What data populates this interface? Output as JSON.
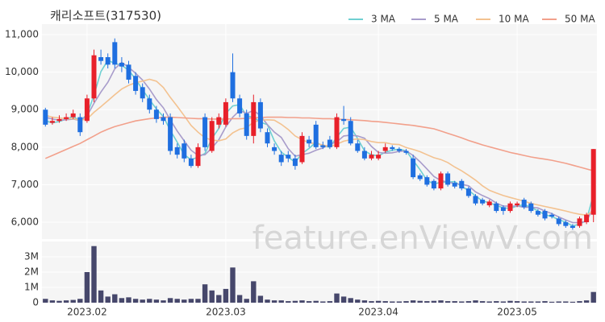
{
  "chart_data": {
    "type": "candlestick",
    "title": "캐리소프트(317530)",
    "watermark": "feature.enViewV.com",
    "grid": true,
    "up_color": "#e8202a",
    "down_color": "#1f6fe0",
    "categories": [
      null,
      null,
      null,
      null,
      null,
      null,
      "2023.02",
      null,
      null,
      null,
      null,
      null,
      null,
      null,
      null,
      null,
      null,
      null,
      null,
      null,
      null,
      null,
      null,
      null,
      null,
      null,
      "2023.03",
      null,
      null,
      null,
      null,
      null,
      null,
      null,
      null,
      null,
      null,
      null,
      null,
      null,
      null,
      null,
      null,
      null,
      null,
      null,
      null,
      null,
      "2023.04",
      null,
      null,
      null,
      null,
      null,
      null,
      null,
      null,
      null,
      null,
      null,
      null,
      null,
      null,
      null,
      null,
      null,
      null,
      null,
      "2023.05",
      null,
      null,
      null,
      null,
      null,
      null,
      null,
      null,
      null,
      null,
      null
    ],
    "open": [
      9000,
      8650,
      8700,
      8750,
      8800,
      8800,
      8700,
      9300,
      10400,
      10400,
      10800,
      10250,
      10200,
      9900,
      9600,
      9300,
      9000,
      8800,
      8800,
      8000,
      8100,
      7700,
      7500,
      8800,
      7900,
      8600,
      8600,
      10000,
      9300,
      8900,
      8300,
      9200,
      8400,
      8000,
      7800,
      7800,
      7700,
      7600,
      8200,
      8600,
      8050,
      8200,
      8000,
      8750,
      8700,
      8100,
      7900,
      7700,
      7700,
      7900,
      8000,
      7950,
      7900,
      7700,
      7250,
      7200,
      7100,
      6900,
      7300,
      7050,
      7100,
      6900,
      6700,
      6600,
      6450,
      6500,
      6400,
      6300,
      6450,
      6600,
      6500,
      6300,
      6300,
      6200,
      6100,
      6000,
      5900,
      5900,
      6000,
      6200
    ],
    "high": [
      9050,
      8800,
      8850,
      8900,
      9000,
      8900,
      9400,
      10600,
      10600,
      10500,
      10900,
      10400,
      10300,
      10000,
      9700,
      9400,
      9100,
      8900,
      8900,
      8100,
      8200,
      7800,
      8100,
      8900,
      8800,
      8900,
      9300,
      10500,
      9400,
      9000,
      9400,
      9300,
      8500,
      8100,
      7900,
      7900,
      7800,
      8400,
      8300,
      8700,
      8150,
      8300,
      8900,
      9100,
      8800,
      8200,
      8000,
      7900,
      7900,
      8100,
      8050,
      8000,
      7950,
      7800,
      7300,
      7250,
      7150,
      7350,
      7350,
      7100,
      7150,
      6950,
      6750,
      6650,
      6600,
      6550,
      6450,
      6550,
      6550,
      6650,
      6550,
      6350,
      6350,
      6250,
      6150,
      6050,
      5950,
      6150,
      6250,
      7950
    ],
    "low": [
      8550,
      8600,
      8650,
      8700,
      8750,
      8300,
      8650,
      9200,
      10200,
      10100,
      10100,
      10000,
      9700,
      9400,
      9200,
      8900,
      8650,
      8600,
      7800,
      7700,
      7600,
      7450,
      7450,
      7900,
      7850,
      8500,
      8550,
      9200,
      8800,
      8200,
      8100,
      8400,
      8000,
      7800,
      7500,
      7600,
      7400,
      7550,
      8000,
      7950,
      7950,
      7950,
      7950,
      8600,
      8050,
      7850,
      7650,
      7650,
      7650,
      7850,
      7900,
      7850,
      7800,
      7150,
      7100,
      6950,
      6850,
      6850,
      6950,
      6900,
      6850,
      6650,
      6450,
      6450,
      6400,
      6250,
      6200,
      6250,
      6400,
      6350,
      6250,
      6150,
      6050,
      6100,
      5900,
      5850,
      5800,
      5850,
      5950,
      6000
    ],
    "close": [
      8600,
      8700,
      8750,
      8800,
      8900,
      8400,
      9300,
      10450,
      10300,
      10200,
      10200,
      10150,
      9800,
      9500,
      9300,
      9000,
      8750,
      8700,
      7900,
      7800,
      7700,
      7500,
      8000,
      8000,
      8700,
      8800,
      9200,
      9300,
      8900,
      8300,
      9200,
      8500,
      8100,
      7900,
      7600,
      7700,
      7500,
      8300,
      8100,
      8000,
      8000,
      8000,
      8800,
      8700,
      8100,
      7900,
      7700,
      7800,
      7800,
      8000,
      7950,
      7900,
      7850,
      7200,
      7150,
      7000,
      6900,
      7300,
      7000,
      6950,
      6900,
      6700,
      6500,
      6500,
      6550,
      6300,
      6300,
      6500,
      6500,
      6400,
      6300,
      6200,
      6100,
      6150,
      5950,
      5900,
      5850,
      6100,
      6200,
      7950
    ],
    "ylim": [
      5550,
      11280
    ],
    "yticks": [
      {
        "value": 6000,
        "label": "6,000"
      },
      {
        "value": 7000,
        "label": "7,000"
      },
      {
        "value": 8000,
        "label": "8,000"
      },
      {
        "value": 9000,
        "label": "9,000"
      },
      {
        "value": 10000,
        "label": "10,000"
      },
      {
        "value": 11000,
        "label": "11,000"
      }
    ],
    "series": [
      {
        "name": "3 MA",
        "color": "#6fd0d2",
        "values": [
          8700,
          8650,
          8683,
          8750,
          8817,
          8700,
          8867,
          9383,
          10017,
          10317,
          10233,
          10183,
          10050,
          9817,
          9533,
          9267,
          9017,
          8817,
          8450,
          8133,
          7800,
          7667,
          7733,
          7833,
          8233,
          8500,
          8900,
          9100,
          9133,
          8833,
          8800,
          8667,
          8600,
          8167,
          7867,
          7733,
          7600,
          7833,
          7967,
          8133,
          8033,
          8000,
          8267,
          8500,
          8533,
          8233,
          7900,
          7800,
          7767,
          7867,
          7917,
          7950,
          7900,
          7650,
          7400,
          7117,
          7017,
          7067,
          7067,
          7083,
          6950,
          6850,
          6700,
          6567,
          6517,
          6450,
          6383,
          6367,
          6433,
          6467,
          6400,
          6300,
          6200,
          6150,
          6067,
          6000,
          5900,
          5950,
          6050,
          6750
        ]
      },
      {
        "name": "5 MA",
        "color": "#a89ccb",
        "values": [
          8800,
          8750,
          8720,
          8730,
          8750,
          8710,
          8830,
          9170,
          9470,
          9730,
          10090,
          10260,
          10130,
          9970,
          9790,
          9550,
          9270,
          9050,
          8730,
          8430,
          8170,
          7920,
          7780,
          7800,
          7980,
          8200,
          8540,
          8800,
          8980,
          8900,
          8980,
          8840,
          8600,
          8400,
          8260,
          7960,
          7760,
          7800,
          7840,
          7920,
          7980,
          8080,
          8140,
          8300,
          8320,
          8300,
          8240,
          8020,
          7860,
          7840,
          7850,
          7890,
          7900,
          7780,
          7610,
          7420,
          7220,
          7110,
          7070,
          7030,
          7010,
          6970,
          6810,
          6710,
          6630,
          6510,
          6430,
          6430,
          6430,
          6400,
          6400,
          6380,
          6300,
          6230,
          6140,
          6060,
          5990,
          5990,
          6020,
          6410
        ]
      },
      {
        "name": "10 MA",
        "color": "#f3c290",
        "values": [
          8850,
          8800,
          8780,
          8760,
          8760,
          8720,
          8750,
          8930,
          9080,
          9240,
          9400,
          9550,
          9650,
          9720,
          9760,
          9810,
          9760,
          9590,
          9330,
          9090,
          8840,
          8580,
          8400,
          8250,
          8190,
          8170,
          8220,
          8380,
          8480,
          8520,
          8670,
          8720,
          8730,
          8720,
          8610,
          8470,
          8300,
          8200,
          8120,
          8090,
          8060,
          8010,
          8080,
          8160,
          8200,
          8220,
          8200,
          8150,
          8120,
          8120,
          8080,
          8070,
          7990,
          7940,
          7880,
          7800,
          7720,
          7670,
          7590,
          7470,
          7370,
          7250,
          7120,
          6970,
          6850,
          6780,
          6710,
          6660,
          6610,
          6560,
          6500,
          6460,
          6420,
          6380,
          6340,
          6300,
          6250,
          6210,
          6190,
          6300
        ]
      },
      {
        "name": "50 MA",
        "color": "#f2a08b",
        "values": [
          7700,
          7780,
          7860,
          7940,
          8020,
          8100,
          8200,
          8300,
          8400,
          8480,
          8550,
          8600,
          8650,
          8700,
          8730,
          8760,
          8780,
          8800,
          8800,
          8790,
          8780,
          8770,
          8760,
          8760,
          8750,
          8750,
          8750,
          8760,
          8760,
          8770,
          8780,
          8790,
          8800,
          8800,
          8800,
          8790,
          8790,
          8780,
          8780,
          8770,
          8760,
          8760,
          8750,
          8740,
          8730,
          8720,
          8710,
          8690,
          8680,
          8660,
          8640,
          8620,
          8600,
          8580,
          8550,
          8520,
          8490,
          8430,
          8370,
          8310,
          8250,
          8180,
          8120,
          8060,
          8010,
          7960,
          7910,
          7860,
          7820,
          7780,
          7740,
          7710,
          7680,
          7650,
          7610,
          7570,
          7520,
          7470,
          7420,
          7370
        ]
      }
    ],
    "volume": {
      "color": "#46476b",
      "ylim": [
        0,
        4000000
      ],
      "yticks": [
        0,
        {
          "value": 1000000,
          "label": "1M"
        },
        {
          "value": 2000000,
          "label": "2M"
        },
        {
          "value": 3000000,
          "label": "3M"
        }
      ],
      "values": [
        250000,
        150000,
        120000,
        150000,
        180000,
        250000,
        2000000,
        3700000,
        800000,
        400000,
        550000,
        300000,
        350000,
        250000,
        200000,
        250000,
        200000,
        150000,
        300000,
        250000,
        200000,
        250000,
        250000,
        1200000,
        800000,
        500000,
        900000,
        2300000,
        500000,
        250000,
        1400000,
        450000,
        200000,
        150000,
        150000,
        100000,
        120000,
        150000,
        100000,
        120000,
        80000,
        100000,
        600000,
        400000,
        300000,
        200000,
        150000,
        100000,
        120000,
        100000,
        80000,
        80000,
        100000,
        150000,
        120000,
        100000,
        120000,
        150000,
        100000,
        100000,
        80000,
        100000,
        150000,
        100000,
        80000,
        100000,
        80000,
        120000,
        100000,
        80000,
        80000,
        80000,
        100000,
        60000,
        80000,
        80000,
        60000,
        100000,
        150000,
        700000
      ]
    }
  }
}
